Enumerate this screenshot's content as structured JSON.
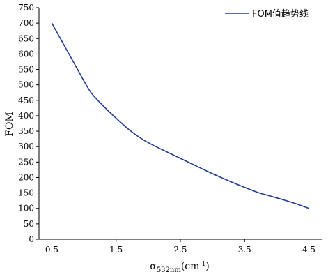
{
  "chart_data": {
    "type": "line",
    "title": "",
    "xlabel": "α532nm(cm⁻¹)",
    "xlabel_base": "α",
    "xlabel_sub": "532nm",
    "xlabel_unit_open": "(cm",
    "xlabel_unit_sup": "-1",
    "xlabel_unit_close": ")",
    "ylabel": "FOM",
    "xlim": [
      0.3,
      4.7
    ],
    "ylim": [
      0,
      750
    ],
    "xticks": [
      0.5,
      1.5,
      2.5,
      3.5,
      4.5
    ],
    "xtick_labels": [
      "0.5",
      "1.5",
      "2.5",
      "3.5",
      "4.5"
    ],
    "yticks": [
      0,
      50,
      100,
      150,
      200,
      250,
      300,
      350,
      400,
      450,
      500,
      550,
      600,
      650,
      700,
      750
    ],
    "ytick_labels": [
      "0",
      "50",
      "100",
      "150",
      "200",
      "250",
      "300",
      "350",
      "400",
      "450",
      "500",
      "550",
      "600",
      "650",
      "700",
      "750"
    ],
    "grid": false,
    "legend_position": "top-right",
    "series": [
      {
        "name": "FOM值趋势线",
        "color": "#1f3a93",
        "x": [
          0.5,
          0.7,
          0.9,
          1.1,
          1.3,
          1.5,
          1.7,
          1.9,
          2.1,
          2.3,
          2.5,
          2.7,
          2.9,
          3.1,
          3.3,
          3.5,
          3.7,
          3.9,
          4.1,
          4.3,
          4.5
        ],
        "y": [
          700,
          625,
          550,
          478,
          432,
          392,
          355,
          325,
          302,
          282,
          262,
          242,
          222,
          203,
          185,
          168,
          152,
          140,
          128,
          115,
          100
        ]
      }
    ]
  }
}
